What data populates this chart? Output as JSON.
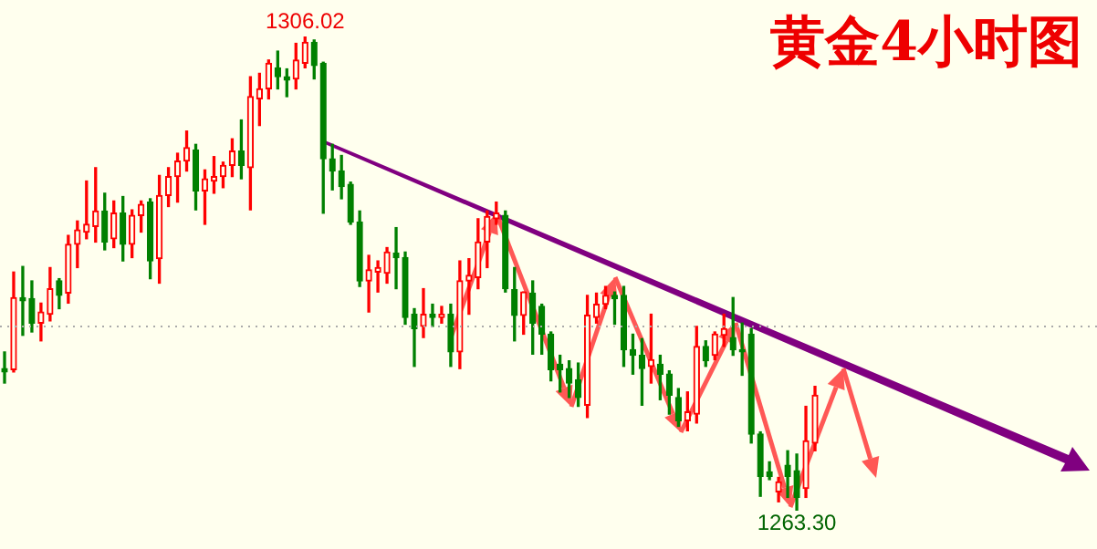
{
  "chart_data": {
    "type": "candlestick",
    "title": "黄金4小时图",
    "categories": [
      null,
      null,
      null,
      null,
      null,
      null,
      null,
      null,
      null,
      null,
      null,
      null,
      null,
      null,
      null,
      null,
      null,
      null,
      null,
      null,
      null,
      null,
      null,
      null,
      null,
      null,
      null,
      null,
      null,
      null,
      null,
      null,
      null,
      null,
      null,
      null,
      null,
      null,
      null,
      null,
      null,
      null,
      null,
      null,
      null,
      null,
      null,
      null,
      null,
      null,
      null,
      null,
      null,
      null,
      null,
      null,
      null,
      null,
      null,
      null,
      null,
      null,
      null,
      null,
      null,
      null,
      null,
      null,
      null,
      null,
      null,
      null,
      null,
      null,
      null,
      null,
      null,
      null,
      null,
      null,
      null,
      null,
      null,
      null,
      null,
      null,
      null,
      null,
      null,
      null
    ],
    "ohlc": [
      [
        1276.1,
        1277.6,
        1274.8,
        1275.8
      ],
      [
        1276.0,
        1284.8,
        1275.8,
        1282.5
      ],
      [
        1282.5,
        1285.3,
        1279.1,
        1282.2
      ],
      [
        1282.4,
        1284.0,
        1279.4,
        1280.2
      ],
      [
        1280.2,
        1282.0,
        1278.6,
        1281.2
      ],
      [
        1281.0,
        1285.2,
        1280.4,
        1283.3
      ],
      [
        1284.0,
        1284.2,
        1281.5,
        1282.7
      ],
      [
        1282.9,
        1288.1,
        1282.0,
        1287.3
      ],
      [
        1287.3,
        1289.4,
        1285.2,
        1288.6
      ],
      [
        1288.4,
        1293.0,
        1287.8,
        1289.1
      ],
      [
        1288.9,
        1294.2,
        1287.5,
        1290.3
      ],
      [
        1290.3,
        1291.9,
        1286.8,
        1287.5
      ],
      [
        1287.8,
        1291.2,
        1287.0,
        1290.1
      ],
      [
        1290.1,
        1291.6,
        1285.8,
        1287.3
      ],
      [
        1287.3,
        1290.4,
        1286.1,
        1289.9
      ],
      [
        1289.9,
        1291.2,
        1288.4,
        1290.9
      ],
      [
        1291.1,
        1291.4,
        1284.2,
        1285.8
      ],
      [
        1286.0,
        1293.5,
        1283.8,
        1291.7
      ],
      [
        1291.7,
        1294.2,
        1290.7,
        1293.4
      ],
      [
        1293.4,
        1295.5,
        1291.1,
        1294.8
      ],
      [
        1294.8,
        1297.5,
        1293.9,
        1296.0
      ],
      [
        1295.8,
        1296.3,
        1290.4,
        1292.1
      ],
      [
        1292.1,
        1294.0,
        1289.1,
        1293.2
      ],
      [
        1293.0,
        1295.2,
        1291.9,
        1293.4
      ],
      [
        1293.4,
        1294.7,
        1292.4,
        1294.4
      ],
      [
        1294.4,
        1296.8,
        1293.4,
        1295.7
      ],
      [
        1295.7,
        1298.5,
        1293.2,
        1294.4
      ],
      [
        1294.2,
        1302.4,
        1290.4,
        1300.6
      ],
      [
        1300.4,
        1302.7,
        1298.0,
        1301.3
      ],
      [
        1301.3,
        1303.9,
        1300.4,
        1303.6
      ],
      [
        1303.2,
        1304.7,
        1301.3,
        1302.4
      ],
      [
        1302.4,
        1303.1,
        1300.6,
        1302.1
      ],
      [
        1302.2,
        1305.4,
        1301.3,
        1303.9
      ],
      [
        1303.6,
        1306.02,
        1303.2,
        1305.5
      ],
      [
        1305.5,
        1305.7,
        1302.2,
        1303.4
      ],
      [
        1303.6,
        1303.7,
        1290.1,
        1295.0
      ],
      [
        1295.0,
        1296.3,
        1292.2,
        1293.9
      ],
      [
        1293.9,
        1295.3,
        1291.4,
        1292.5
      ],
      [
        1292.7,
        1292.9,
        1289.1,
        1289.3
      ],
      [
        1289.3,
        1290.3,
        1283.5,
        1284.0
      ],
      [
        1284.0,
        1286.3,
        1281.2,
        1285.0
      ],
      [
        1284.8,
        1285.8,
        1283.0,
        1285.2
      ],
      [
        1284.7,
        1287.0,
        1283.8,
        1286.6
      ],
      [
        1286.5,
        1288.8,
        1283.3,
        1286.1
      ],
      [
        1286.1,
        1286.6,
        1280.1,
        1280.7
      ],
      [
        1281.0,
        1281.5,
        1276.3,
        1279.7
      ],
      [
        1279.9,
        1283.3,
        1278.9,
        1281.0
      ],
      [
        1281.0,
        1281.9,
        1279.9,
        1280.7
      ],
      [
        1280.7,
        1281.7,
        1280.2,
        1281.0
      ],
      [
        1281.0,
        1281.9,
        1276.3,
        1277.6
      ],
      [
        1277.6,
        1285.8,
        1276.1,
        1284.0
      ],
      [
        1284.0,
        1286.0,
        1281.0,
        1284.5
      ],
      [
        1284.3,
        1289.6,
        1283.3,
        1287.5
      ],
      [
        1287.5,
        1290.3,
        1285.2,
        1289.8
      ],
      [
        1289.6,
        1291.1,
        1289.1,
        1290.1
      ],
      [
        1289.9,
        1290.3,
        1283.0,
        1283.3
      ],
      [
        1283.2,
        1285.2,
        1278.6,
        1280.9
      ],
      [
        1280.9,
        1283.0,
        1279.2,
        1283.0
      ],
      [
        1282.9,
        1284.0,
        1277.4,
        1280.2
      ],
      [
        1281.7,
        1281.9,
        1277.4,
        1279.2
      ],
      [
        1279.2,
        1279.4,
        1275.0,
        1276.0
      ],
      [
        1276.5,
        1277.3,
        1274.0,
        1276.0
      ],
      [
        1276.1,
        1276.8,
        1273.5,
        1274.8
      ],
      [
        1275.1,
        1276.6,
        1272.7,
        1273.5
      ],
      [
        1272.8,
        1282.7,
        1271.7,
        1280.9
      ],
      [
        1280.7,
        1282.9,
        1280.2,
        1281.9
      ],
      [
        1281.9,
        1283.5,
        1281.5,
        1282.7
      ],
      [
        1282.7,
        1283.0,
        1280.1,
        1282.4
      ],
      [
        1282.7,
        1283.5,
        1276.3,
        1277.8
      ],
      [
        1277.8,
        1279.2,
        1275.6,
        1277.3
      ],
      [
        1277.3,
        1278.8,
        1272.8,
        1276.1
      ],
      [
        1276.3,
        1281.0,
        1274.8,
        1276.9
      ],
      [
        1276.5,
        1277.3,
        1273.3,
        1275.6
      ],
      [
        1275.6,
        1275.9,
        1272.0,
        1273.7
      ],
      [
        1273.5,
        1274.3,
        1270.9,
        1271.4
      ],
      [
        1271.4,
        1274.0,
        1270.5,
        1272.2
      ],
      [
        1272.0,
        1279.9,
        1271.2,
        1278.1
      ],
      [
        1278.1,
        1278.6,
        1276.3,
        1276.8
      ],
      [
        1277.3,
        1279.4,
        1276.9,
        1279.2
      ],
      [
        1279.1,
        1281.0,
        1278.1,
        1279.7
      ],
      [
        1278.9,
        1282.5,
        1277.3,
        1277.8
      ],
      [
        1277.8,
        1280.2,
        1275.5,
        1277.6
      ],
      [
        1279.2,
        1279.7,
        1269.4,
        1270.2
      ],
      [
        1270.2,
        1270.4,
        1264.6,
        1266.4
      ],
      [
        1266.8,
        1267.7,
        1266.1,
        1266.4
      ],
      [
        1265.0,
        1266.3,
        1264.1,
        1265.9
      ],
      [
        1267.4,
        1268.7,
        1264.5,
        1266.4
      ],
      [
        1266.9,
        1268.4,
        1263.3,
        1264.5
      ],
      [
        1265.3,
        1272.7,
        1264.5,
        1269.6
      ],
      [
        1269.4,
        1274.5,
        1268.7,
        1273.7
      ]
    ],
    "annotations": [
      {
        "text": "1306.02",
        "y": 1306.02
      },
      {
        "text": "1263.30",
        "y": 1263.3
      }
    ],
    "ref_lines": [
      {
        "axis": "y",
        "value": 1279.9,
        "color": "#aaaaaa",
        "line_style": "dotted"
      }
    ]
  }
}
